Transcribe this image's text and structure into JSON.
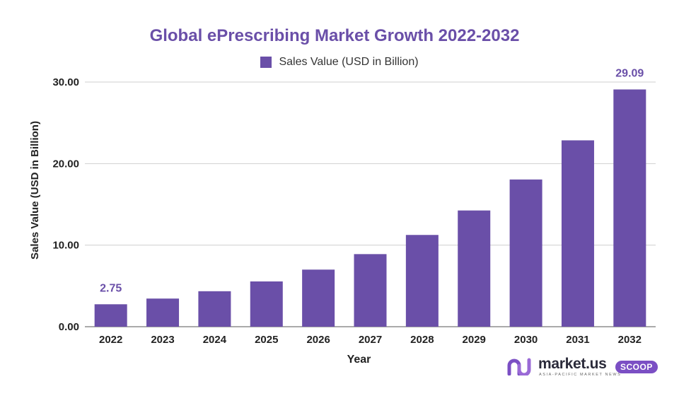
{
  "chart_data": {
    "type": "bar",
    "title": "Global ePrescribing Market Growth 2022-2032",
    "xlabel": "Year",
    "ylabel": "Sales Value (USD in Billion)",
    "ylim": [
      0,
      30
    ],
    "yticks": [
      "0.00",
      "10.00",
      "20.00",
      "30.00"
    ],
    "grid": true,
    "legend_position": "top-center",
    "categories": [
      "2022",
      "2023",
      "2024",
      "2025",
      "2026",
      "2027",
      "2028",
      "2029",
      "2030",
      "2031",
      "2032"
    ],
    "series": [
      {
        "name": "Sales Value (USD in Billion)",
        "color": "#6a4fa8",
        "values": [
          2.75,
          3.45,
          4.35,
          5.55,
          7.0,
          8.9,
          11.25,
          14.25,
          18.05,
          22.85,
          29.09
        ]
      }
    ],
    "data_labels": [
      {
        "index": 0,
        "text": "2.75"
      },
      {
        "index": 10,
        "text": "29.09"
      }
    ]
  },
  "brand": {
    "name": "market.us",
    "tagline": "ASIA-PACIFIC MARKET NEWS",
    "badge": "SCOOP",
    "logo_icon": "market-us-logo-icon"
  }
}
